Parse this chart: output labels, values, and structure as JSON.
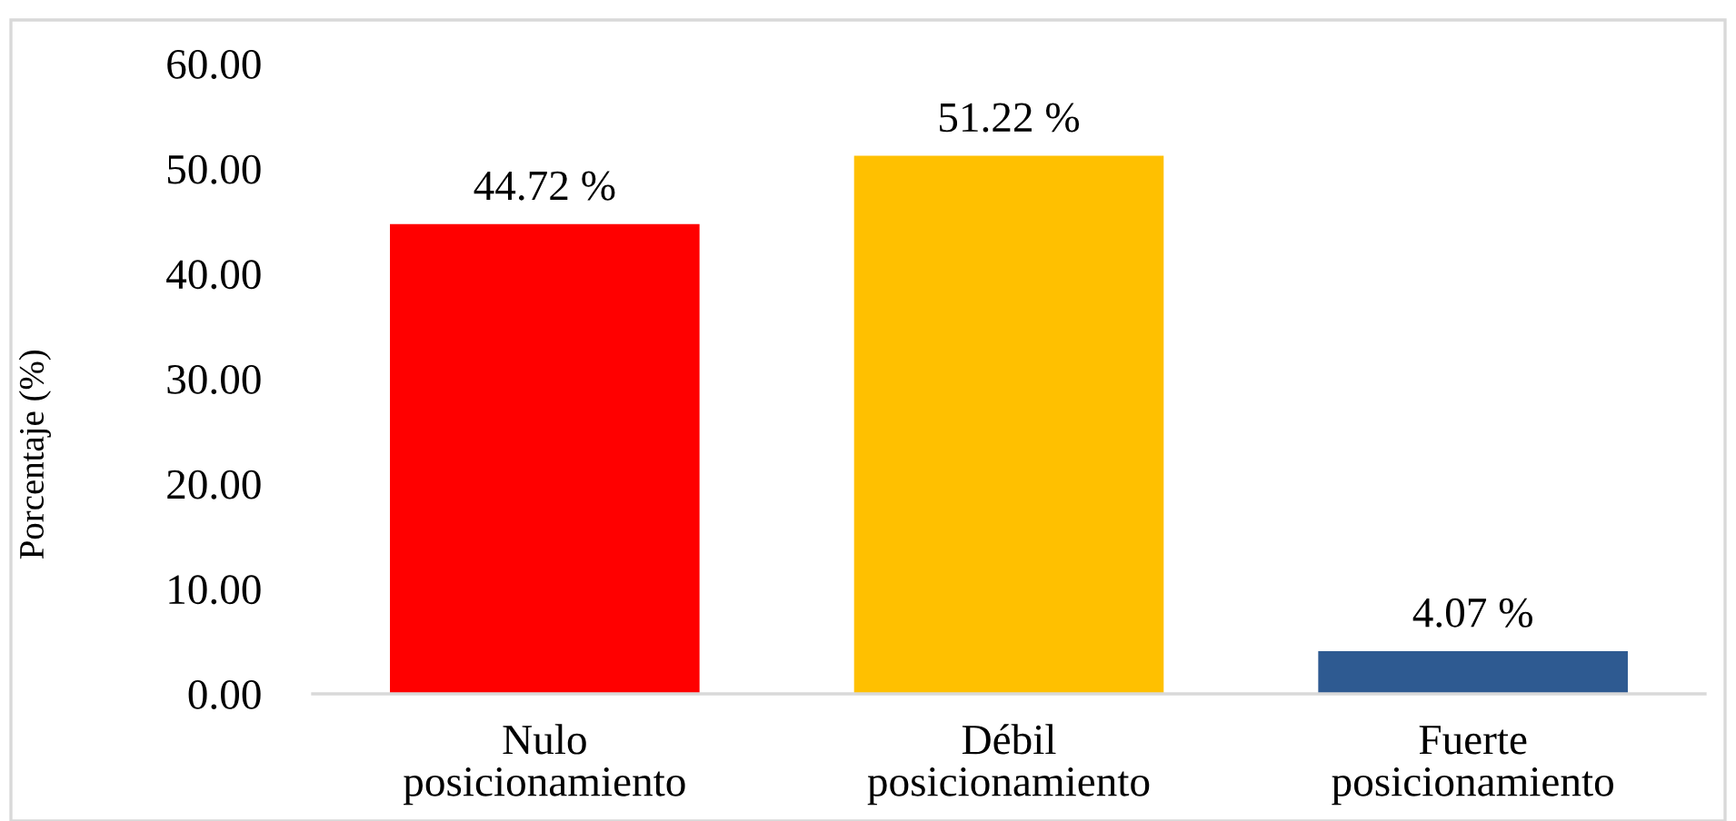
{
  "chart_data": {
    "type": "bar",
    "ylabel": "Porcentaje (%)",
    "categories": [
      "Nulo\nposicionamiento",
      "Débil\nposicionamiento",
      "Fuerte\nposicionamiento"
    ],
    "values": [
      44.72,
      51.22,
      4.07
    ],
    "colors": [
      "#ff0000",
      "#ffc000",
      "#2e5a91"
    ],
    "value_labels": [
      "44.72 %",
      "51.22 %",
      "4.07 %"
    ],
    "ylim": [
      0,
      60
    ],
    "yticks": [
      {
        "value": 0,
        "label": "0.00"
      },
      {
        "value": 10,
        "label": "10.00"
      },
      {
        "value": 20,
        "label": "20.00"
      },
      {
        "value": 30,
        "label": "30.00"
      },
      {
        "value": 40,
        "label": "40.00"
      },
      {
        "value": 50,
        "label": "50.00"
      },
      {
        "value": 60,
        "label": "60.00"
      }
    ],
    "grid": false,
    "legend": false
  }
}
